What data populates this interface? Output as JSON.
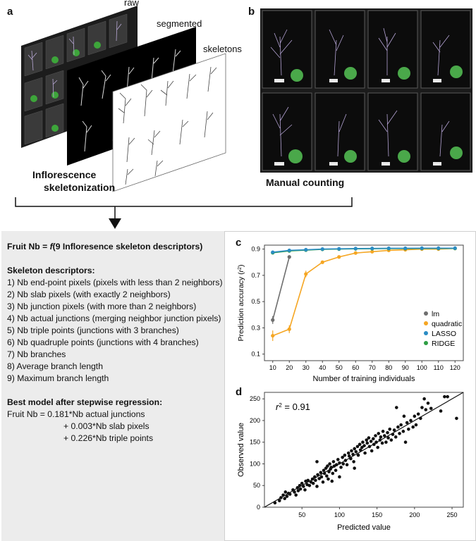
{
  "panel_a": {
    "label": "a",
    "stack_labels": {
      "raw": "raw",
      "segmented": "segmented",
      "skeletons": "skeletons"
    },
    "caption": [
      "Inflorescence",
      "skeletonization"
    ]
  },
  "panel_b": {
    "label": "b",
    "caption": "Manual counting"
  },
  "left_text": {
    "formula_prefix": "Fruit Nb = ",
    "formula_f": "f",
    "formula_suffix": "(9 Infloresence skeleton descriptors)",
    "descriptors_title": "Skeleton descriptors:",
    "descriptors": [
      "1) Nb end-point pixels (pixels with less than 2 neighbors)",
      "2) Nb slab pixels (with exactly 2 neighbors)",
      "3) Nb junction pixels (with more than 2 neighbors)",
      "4) Nb actual junctions (merging neighbor junction pixels)",
      "5) Nb triple points (junctions with 3 branches)",
      "6) Nb quadruple points (junctions with 4 branches)",
      "7) Nb branches",
      "8) Average branch length",
      "9) Maximum branch length"
    ],
    "model_title": "Best model after stepwise regression:",
    "model_lines": [
      "Fruit Nb = 0.181*Nb actual junctions",
      "+ 0.003*Nb slab pixels",
      "+ 0.226*Nb triple points"
    ]
  },
  "colors": {
    "lm": "#6e6e6e",
    "quadratic": "#f5a623",
    "lasso": "#2b8cc4",
    "ridge": "#2e9e44"
  },
  "chart_data": [
    {
      "id": "c",
      "label": "c",
      "type": "line",
      "xlabel": "Number of training individuals",
      "ylabel_text": "Prediction accuracy (",
      "ylabel_r": "r",
      "ylabel_sup": "2",
      "ylabel_end": ")",
      "x": [
        10,
        20,
        30,
        40,
        50,
        60,
        70,
        80,
        90,
        100,
        110,
        120
      ],
      "xlim": [
        5,
        125
      ],
      "ylim": [
        0.05,
        0.93
      ],
      "yticks": [
        0.1,
        0.3,
        0.5,
        0.7,
        0.9
      ],
      "ytick_labels": [
        "0.1",
        "0.3",
        "0.5",
        "0.7",
        "0.9"
      ],
      "series": [
        {
          "name": "lm",
          "color": "#6e6e6e",
          "values": [
            0.36,
            0.84,
            null,
            null,
            null,
            null,
            null,
            null,
            null,
            null,
            null,
            null
          ],
          "err": [
            0.03,
            0.01,
            null,
            null,
            null,
            null,
            null,
            null,
            null,
            null,
            null,
            null
          ]
        },
        {
          "name": "quadratic",
          "color": "#f5a623",
          "values": [
            0.24,
            0.29,
            0.71,
            0.8,
            0.84,
            0.87,
            0.88,
            0.89,
            0.895,
            0.9,
            0.9,
            0.905
          ],
          "err": [
            0.04,
            0.03,
            0.025,
            0.012,
            0.008,
            0.006,
            0.005,
            0.004,
            0.004,
            0.003,
            0.003,
            0.003
          ]
        },
        {
          "name": "LASSO",
          "color": "#2b8cc4",
          "values": [
            0.876,
            0.89,
            0.895,
            0.9,
            0.902,
            0.904,
            0.905,
            0.906,
            0.906,
            0.907,
            0.907,
            0.907
          ],
          "err": [
            0.01,
            0.005,
            0.004,
            0.003,
            0.003,
            0.003,
            0.002,
            0.002,
            0.002,
            0.002,
            0.002,
            0.002
          ]
        },
        {
          "name": "RIDGE",
          "color": "#2e9e44",
          "values": [
            0.872,
            0.886,
            0.892,
            0.898,
            0.9,
            0.902,
            0.903,
            0.904,
            0.904,
            0.905,
            0.905,
            0.905
          ],
          "err": [
            0.01,
            0.005,
            0.004,
            0.003,
            0.003,
            0.003,
            0.002,
            0.002,
            0.002,
            0.002,
            0.002,
            0.002
          ]
        }
      ],
      "legend": [
        "lm",
        "quadratic",
        "LASSO",
        "RIDGE"
      ],
      "legend_position": "bottom-right"
    },
    {
      "id": "d",
      "label": "d",
      "type": "scatter",
      "xlabel": "Predicted value",
      "ylabel": "Observed value",
      "xlim": [
        0,
        265
      ],
      "ylim": [
        0,
        265
      ],
      "xticks": [
        50,
        100,
        150,
        200,
        250
      ],
      "yticks": [
        0,
        50,
        100,
        150,
        200,
        250
      ],
      "annotation_r": "r",
      "annotation_sup": "2",
      "annotation_value": " = 0.91",
      "fit_line": [
        [
          0,
          0
        ],
        [
          265,
          265
        ]
      ],
      "points": [
        [
          14,
          10
        ],
        [
          20,
          15
        ],
        [
          22,
          22
        ],
        [
          25,
          28
        ],
        [
          27,
          20
        ],
        [
          28,
          35
        ],
        [
          30,
          25
        ],
        [
          32,
          32
        ],
        [
          34,
          30
        ],
        [
          38,
          40
        ],
        [
          40,
          35
        ],
        [
          42,
          28
        ],
        [
          44,
          45
        ],
        [
          45,
          38
        ],
        [
          47,
          50
        ],
        [
          48,
          42
        ],
        [
          50,
          55
        ],
        [
          52,
          48
        ],
        [
          54,
          40
        ],
        [
          55,
          60
        ],
        [
          57,
          52
        ],
        [
          58,
          62
        ],
        [
          60,
          50
        ],
        [
          62,
          58
        ],
        [
          64,
          65
        ],
        [
          65,
          55
        ],
        [
          67,
          70
        ],
        [
          68,
          62
        ],
        [
          70,
          48
        ],
        [
          71,
          75
        ],
        [
          73,
          66
        ],
        [
          75,
          80
        ],
        [
          76,
          70
        ],
        [
          78,
          58
        ],
        [
          79,
          85
        ],
        [
          80,
          78
        ],
        [
          82,
          90
        ],
        [
          83,
          72
        ],
        [
          84,
          95
        ],
        [
          85,
          65
        ],
        [
          86,
          82
        ],
        [
          87,
          100
        ],
        [
          88,
          88
        ],
        [
          89,
          92
        ],
        [
          90,
          60
        ],
        [
          91,
          78
        ],
        [
          92,
          105
        ],
        [
          93,
          95
        ],
        [
          95,
          85
        ],
        [
          96,
          98
        ],
        [
          98,
          110
        ],
        [
          100,
          102
        ],
        [
          102,
          92
        ],
        [
          104,
          115
        ],
        [
          105,
          100
        ],
        [
          107,
          120
        ],
        [
          108,
          108
        ],
        [
          110,
          98
        ],
        [
          112,
          125
        ],
        [
          113,
          118
        ],
        [
          115,
          112
        ],
        [
          116,
          130
        ],
        [
          118,
          122
        ],
        [
          119,
          105
        ],
        [
          120,
          135
        ],
        [
          122,
          128
        ],
        [
          124,
          140
        ],
        [
          125,
          120
        ],
        [
          127,
          145
        ],
        [
          128,
          132
        ],
        [
          130,
          138
        ],
        [
          131,
          150
        ],
        [
          133,
          142
        ],
        [
          134,
          125
        ],
        [
          136,
          155
        ],
        [
          137,
          148
        ],
        [
          139,
          160
        ],
        [
          140,
          140
        ],
        [
          142,
          152
        ],
        [
          143,
          130
        ],
        [
          145,
          158
        ],
        [
          146,
          145
        ],
        [
          148,
          165
        ],
        [
          149,
          150
        ],
        [
          151,
          138
        ],
        [
          152,
          170
        ],
        [
          154,
          155
        ],
        [
          155,
          162
        ],
        [
          157,
          148
        ],
        [
          158,
          175
        ],
        [
          160,
          165
        ],
        [
          162,
          150
        ],
        [
          164,
          172
        ],
        [
          165,
          160
        ],
        [
          167,
          180
        ],
        [
          169,
          155
        ],
        [
          171,
          168
        ],
        [
          173,
          178
        ],
        [
          175,
          162
        ],
        [
          178,
          185
        ],
        [
          180,
          170
        ],
        [
          182,
          190
        ],
        [
          185,
          175
        ],
        [
          188,
          150
        ],
        [
          190,
          195
        ],
        [
          192,
          180
        ],
        [
          195,
          200
        ],
        [
          198,
          185
        ],
        [
          200,
          210
        ],
        [
          202,
          190
        ],
        [
          205,
          215
        ],
        [
          208,
          205
        ],
        [
          210,
          230
        ],
        [
          213,
          250
        ],
        [
          215,
          225
        ],
        [
          218,
          240
        ],
        [
          222,
          228
        ],
        [
          235,
          222
        ],
        [
          240,
          255
        ],
        [
          244,
          255
        ],
        [
          256,
          205
        ],
        [
          176,
          230
        ],
        [
          186,
          210
        ],
        [
          120,
          90
        ],
        [
          70,
          105
        ],
        [
          100,
          70
        ]
      ]
    }
  ]
}
